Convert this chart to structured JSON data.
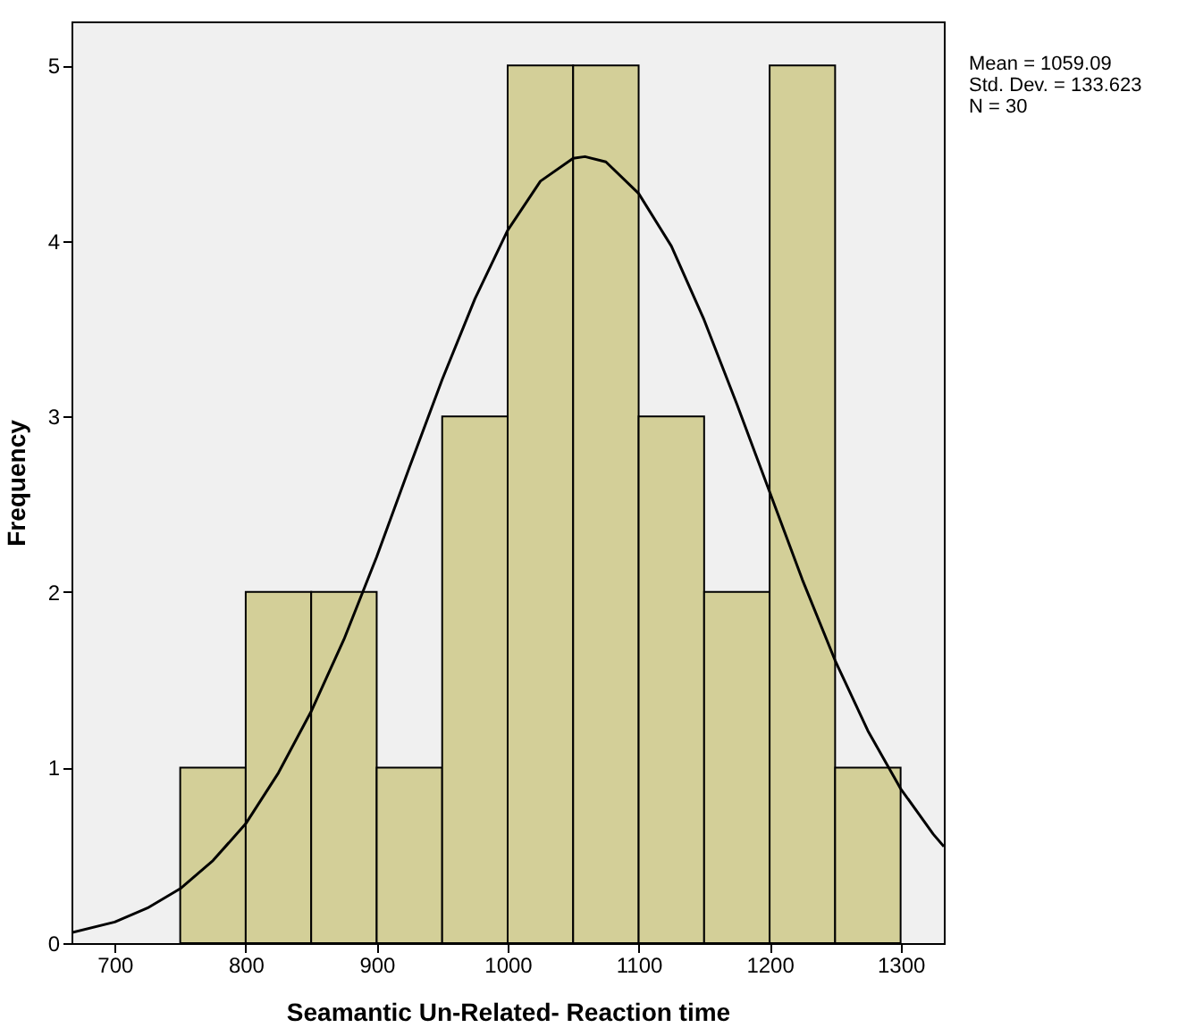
{
  "chart_data": {
    "type": "histogram",
    "xlabel": "Seamantic Un-Related- Reaction time",
    "ylabel": "Frequency",
    "annotations": [
      "Mean = 1059.09",
      "Std. Dev. = 133.623",
      "N = 30"
    ],
    "xlim": [
      667,
      1333
    ],
    "xticks": [
      700,
      800,
      900,
      1000,
      1100,
      1200,
      1300
    ],
    "ylim": [
      0,
      5.25
    ],
    "yticks": [
      0,
      1,
      2,
      3,
      4,
      5
    ],
    "series": [
      {
        "color": "#d3cf98",
        "bins": [
          750,
          800,
          850,
          900,
          950,
          1000,
          1050,
          1100,
          1150,
          1200,
          1250,
          1300
        ],
        "values": [
          1,
          2,
          2,
          1,
          3,
          5,
          5,
          3,
          2,
          5,
          1
        ]
      },
      {
        "type": "line",
        "color": "#000000",
        "x": [
          667,
          700,
          725,
          750,
          775,
          800,
          825,
          850,
          875,
          900,
          925,
          950,
          975,
          1000,
          1025,
          1050,
          1059,
          1075,
          1100,
          1125,
          1150,
          1175,
          1200,
          1225,
          1250,
          1275,
          1300,
          1325,
          1333
        ],
        "values": [
          0.06,
          0.12,
          0.2,
          0.31,
          0.47,
          0.68,
          0.97,
          1.32,
          1.73,
          2.2,
          2.71,
          3.21,
          3.67,
          4.06,
          4.34,
          4.47,
          4.48,
          4.45,
          4.27,
          3.97,
          3.55,
          3.07,
          2.57,
          2.07,
          1.61,
          1.21,
          0.88,
          0.62,
          0.55
        ]
      }
    ]
  }
}
